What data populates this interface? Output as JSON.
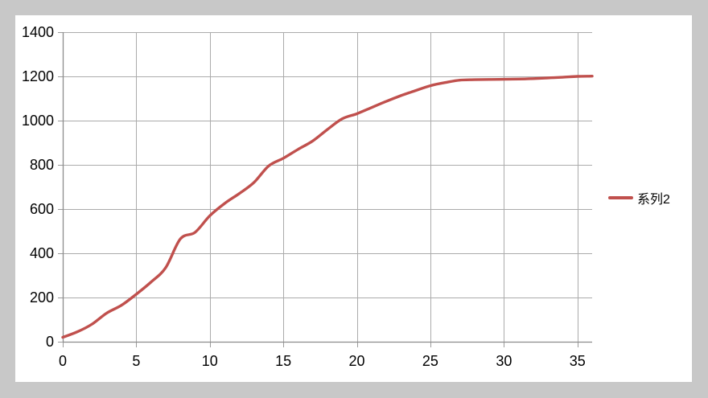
{
  "chart_data": {
    "type": "line",
    "title": "",
    "xlabel": "",
    "ylabel": "",
    "xlim": [
      0,
      36
    ],
    "ylim": [
      0,
      1400
    ],
    "x_ticks": [
      0,
      5,
      10,
      15,
      20,
      25,
      30,
      35
    ],
    "y_ticks": [
      0,
      200,
      400,
      600,
      800,
      1000,
      1200,
      1400
    ],
    "grid": true,
    "legend_position": "right",
    "x": [
      0,
      1,
      2,
      3,
      4,
      5,
      6,
      7,
      8,
      9,
      10,
      11,
      12,
      13,
      14,
      15,
      16,
      17,
      18,
      19,
      20,
      21,
      22,
      23,
      24,
      25,
      26,
      27,
      28,
      29,
      30,
      31,
      32,
      33,
      34,
      35,
      36
    ],
    "series": [
      {
        "name": "系列2",
        "color": "#C0504D",
        "values": [
          20,
          45,
          80,
          130,
          165,
          215,
          270,
          335,
          465,
          495,
          570,
          625,
          670,
          720,
          795,
          830,
          870,
          908,
          960,
          1008,
          1031,
          1059,
          1087,
          1113,
          1136,
          1158,
          1172,
          1183,
          1185,
          1186,
          1187,
          1188,
          1190,
          1193,
          1196,
          1200,
          1201
        ]
      }
    ]
  },
  "legend": {
    "label": "系列2"
  },
  "colors": {
    "background": "#c8c8c8",
    "panel_background": "#ffffff",
    "gridline": "#ababab",
    "axis": "#8c8c8c",
    "tick": "#9a9a9a",
    "series": "#C0504D",
    "tick_label": "#000000"
  }
}
